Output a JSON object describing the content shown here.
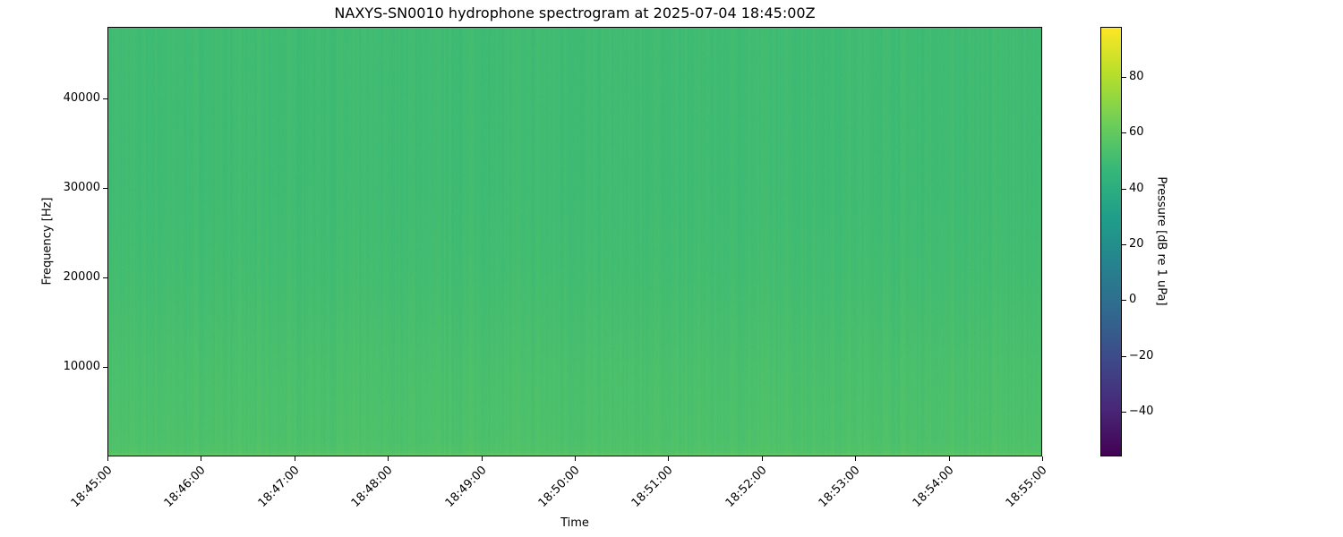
{
  "chart_data": {
    "type": "heatmap",
    "title": "NAXYS-SN0010 hydrophone spectrogram at 2025-07-04 18:45:00Z",
    "xlabel": "Time",
    "ylabel": "Frequency [Hz]",
    "colorbar_label": "Pressure [dB re 1 uPa]",
    "colormap": "viridis",
    "x_ticks": [
      "18:45:00",
      "18:46:00",
      "18:47:00",
      "18:48:00",
      "18:49:00",
      "18:50:00",
      "18:51:00",
      "18:52:00",
      "18:53:00",
      "18:54:00",
      "18:55:00"
    ],
    "xlim": [
      "18:45:00",
      "18:55:00"
    ],
    "y_ticks": [
      10000,
      20000,
      30000,
      40000
    ],
    "ylim": [
      0,
      48000
    ],
    "colorbar_ticks": [
      -40,
      -20,
      0,
      20,
      40,
      60,
      80
    ],
    "clim": [
      -56,
      98
    ],
    "level_profile": {
      "frequency_hz": [
        0,
        500,
        2000,
        10000,
        20000,
        30000,
        40000,
        48000
      ],
      "level_db": [
        60,
        55,
        54,
        53,
        51,
        50,
        50,
        50
      ]
    }
  }
}
